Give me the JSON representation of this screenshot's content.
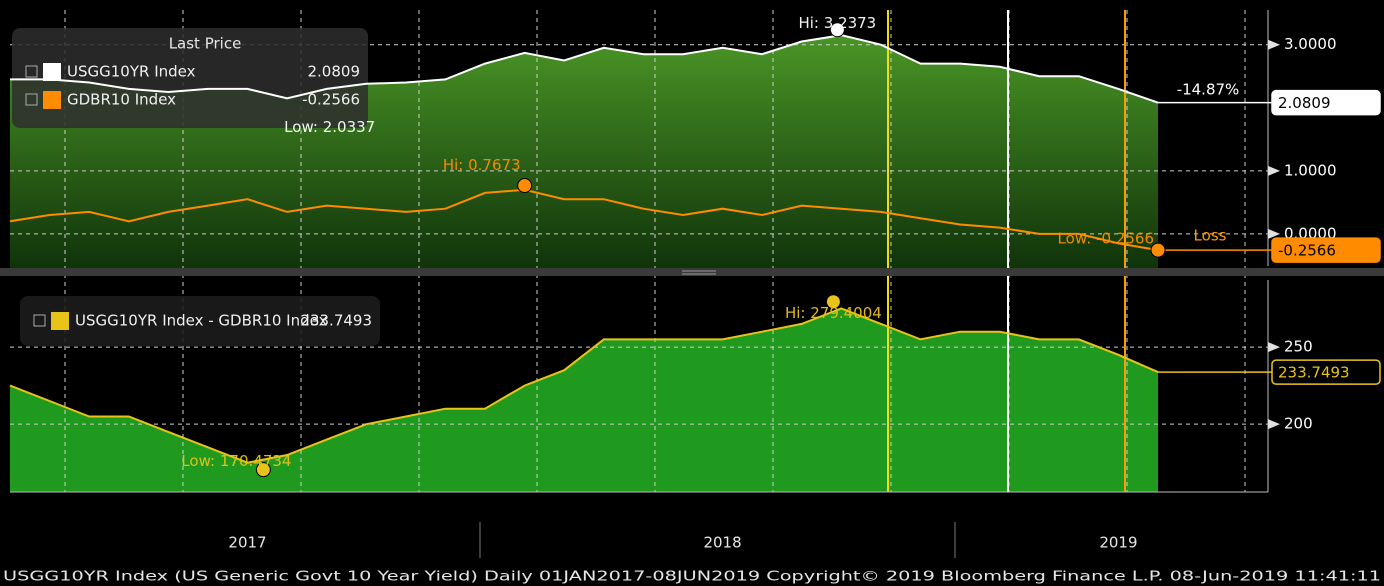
{
  "chart_data": [
    {
      "type": "line",
      "legend_title": "Last Price",
      "ylim": [
        -0.54,
        3.55
      ],
      "yticks": [
        {
          "value": 0,
          "label": "0.0000"
        },
        {
          "value": 1,
          "label": "1.0000"
        },
        {
          "value": 3,
          "label": "3.0000"
        }
      ],
      "grid": true,
      "series": [
        {
          "name": "USGG10YR Index",
          "color": "#ffffff",
          "fill": "#3c7f1f",
          "values": [
            2.45,
            2.45,
            2.4,
            2.3,
            2.25,
            2.3,
            2.3,
            2.15,
            2.3,
            2.38,
            2.4,
            2.45,
            2.7,
            2.87,
            2.75,
            2.95,
            2.85,
            2.85,
            2.95,
            2.85,
            3.05,
            3.15,
            3.0,
            2.7,
            2.7,
            2.65,
            2.5,
            2.5,
            2.3,
            2.0809
          ]
        },
        {
          "name": "GDBR10 Index",
          "color": "#ff8c00",
          "values": [
            0.2,
            0.3,
            0.35,
            0.2,
            0.35,
            0.45,
            0.55,
            0.35,
            0.45,
            0.4,
            0.35,
            0.4,
            0.65,
            0.7,
            0.55,
            0.55,
            0.4,
            0.3,
            0.4,
            0.3,
            0.45,
            0.4,
            0.35,
            0.25,
            0.15,
            0.1,
            0.0,
            0.0,
            -0.15,
            -0.2566
          ]
        }
      ],
      "annotations": [
        {
          "text": "Hi: 3.2373",
          "series": 0,
          "index": 20.9,
          "value": 3.2373,
          "dot": true
        },
        {
          "text": "Low: 2.0337",
          "series": 0,
          "index": 8,
          "value": 2.0337,
          "dot": false
        },
        {
          "text": "Hi: 0.7673",
          "series": 1,
          "index": 13,
          "value": 0.7673,
          "dot": true
        },
        {
          "text": "Low: -0.2566",
          "series": 1,
          "index": 29,
          "value": -0.2566,
          "dot": true
        }
      ],
      "change_label": "-14.87%",
      "loss_label": "Loss"
    },
    {
      "type": "line",
      "ylim": [
        156,
        293.5
      ],
      "yticks": [
        200,
        250
      ],
      "grid": true,
      "categories": [
        null,
        null,
        null,
        null,
        null,
        null,
        "2017",
        null,
        null,
        null,
        null,
        null,
        null,
        null,
        null,
        null,
        null,
        null,
        "2018",
        null,
        null,
        null,
        null,
        null,
        null,
        null,
        null,
        null,
        "2019",
        null
      ],
      "series": [
        {
          "name": "USGG10YR Index - GDBR10 Index",
          "color": "#e8c31a",
          "fill": "#1f9a1f",
          "values": [
            225,
            215,
            205,
            205,
            195,
            185,
            175,
            180,
            190,
            200,
            205,
            210,
            210,
            225,
            235,
            255,
            255,
            255,
            255,
            260,
            265,
            275,
            265,
            255,
            260,
            260,
            255,
            255,
            245,
            233.7493
          ]
        }
      ],
      "annotations": [
        {
          "text": "Hi: 279.4004",
          "series": 0,
          "index": 20.8,
          "value": 279.4004,
          "dot": true
        },
        {
          "text": "Low: 170.4734",
          "series": 0,
          "index": 6.4,
          "value": 170.4734,
          "dot": true
        }
      ]
    }
  ],
  "footer": "USGG10YR Index (US Generic Govt 10 Year Yield)  Daily 01JAN2017-08JUN2019  Copyright© 2019 Bloomberg Finance L.P.   08-Jun-2019 11:41:11"
}
